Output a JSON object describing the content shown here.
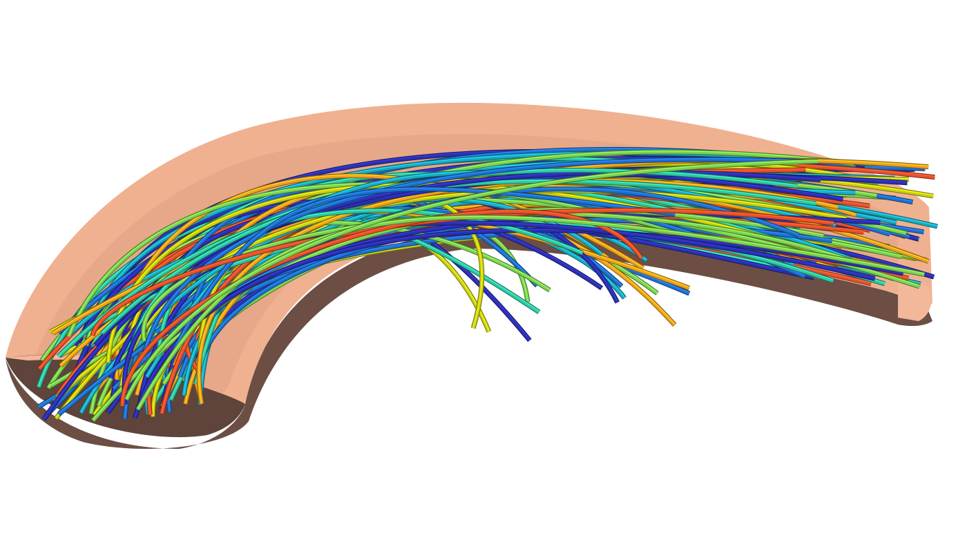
{
  "scene": {
    "background": "#ffffff",
    "pipe": {
      "outer_color": "#f0b190",
      "cut_face_color": "#f3b79a",
      "inner_color": "#e3a385",
      "shadow_color": "#6a4d43"
    },
    "streamlines": {
      "colormap": [
        "#2b2fb0",
        "#1f6fd1",
        "#1aa9c2",
        "#2fc7a0",
        "#7bd24f",
        "#c8cf12",
        "#f0a21a",
        "#e8502a"
      ],
      "tube_count_estimate": 140
    }
  }
}
